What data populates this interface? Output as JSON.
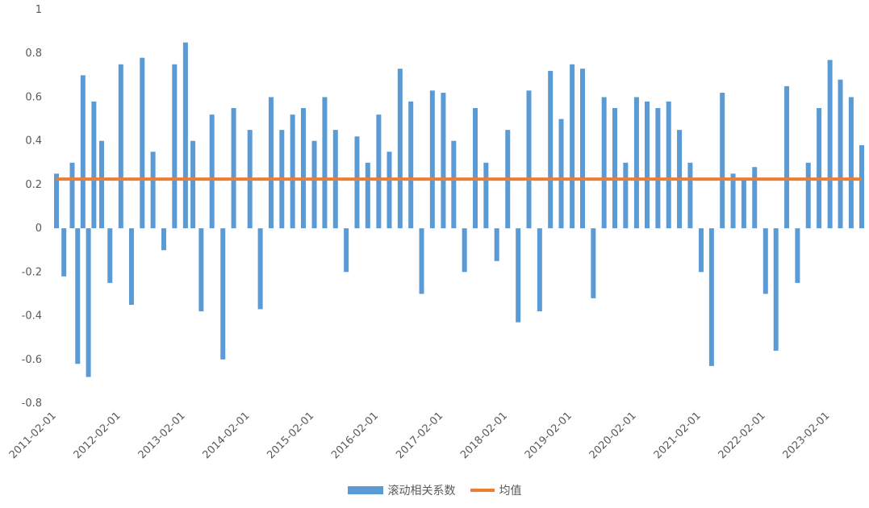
{
  "chart_data": {
    "type": "area",
    "title": "",
    "xlabel": "",
    "ylabel": "",
    "ylim": [
      -0.8,
      1
    ],
    "y_ticks": [
      "1",
      "0.8",
      "0.6",
      "0.4",
      "0.2",
      "0",
      "-0.2",
      "-0.4",
      "-0.6",
      "-0.8"
    ],
    "x_ticks": [
      "2011-02-01",
      "2012-02-01",
      "2013-02-01",
      "2014-02-01",
      "2015-02-01",
      "2016-02-01",
      "2017-02-01",
      "2018-02-01",
      "2019-02-01",
      "2020-02-01",
      "2021-02-01",
      "2022-02-01",
      "2023-02-01"
    ],
    "x_range": [
      "2011-02-01",
      "2023-07-31"
    ],
    "grid": false,
    "legend_position": "bottom",
    "series": [
      {
        "name": "滚动相关系数",
        "kind": "area",
        "color": "#5b9bd5",
        "x": [
          "2011-02-01",
          "2011-03-15",
          "2011-05-01",
          "2011-06-01",
          "2011-07-01",
          "2011-08-01",
          "2011-09-01",
          "2011-10-15",
          "2011-12-01",
          "2012-02-01",
          "2012-04-01",
          "2012-06-01",
          "2012-08-01",
          "2012-10-01",
          "2012-12-01",
          "2013-02-01",
          "2013-03-15",
          "2013-05-01",
          "2013-07-01",
          "2013-09-01",
          "2013-11-01",
          "2014-02-01",
          "2014-04-01",
          "2014-06-01",
          "2014-08-01",
          "2014-10-01",
          "2014-12-01",
          "2015-02-01",
          "2015-04-01",
          "2015-06-01",
          "2015-08-01",
          "2015-10-01",
          "2015-12-01",
          "2016-02-01",
          "2016-04-01",
          "2016-06-01",
          "2016-08-01",
          "2016-10-01",
          "2016-12-01",
          "2017-02-01",
          "2017-04-01",
          "2017-06-01",
          "2017-08-01",
          "2017-10-01",
          "2017-12-01",
          "2018-02-01",
          "2018-04-01",
          "2018-06-01",
          "2018-08-01",
          "2018-10-01",
          "2018-12-01",
          "2019-02-01",
          "2019-04-01",
          "2019-06-01",
          "2019-08-01",
          "2019-10-01",
          "2019-12-01",
          "2020-02-01",
          "2020-04-01",
          "2020-06-01",
          "2020-08-01",
          "2020-10-01",
          "2020-12-01",
          "2021-02-01",
          "2021-04-01",
          "2021-06-01",
          "2021-08-01",
          "2021-10-01",
          "2021-12-01",
          "2022-02-01",
          "2022-04-01",
          "2022-06-01",
          "2022-08-01",
          "2022-10-01",
          "2022-12-01",
          "2023-02-01",
          "2023-04-01",
          "2023-06-01",
          "2023-07-31"
        ],
        "values": [
          0.25,
          -0.22,
          0.3,
          -0.62,
          0.7,
          -0.68,
          0.58,
          0.4,
          -0.25,
          0.75,
          -0.35,
          0.78,
          0.35,
          -0.1,
          0.75,
          0.85,
          0.4,
          -0.38,
          0.52,
          -0.6,
          0.55,
          0.45,
          -0.37,
          0.6,
          0.45,
          0.52,
          0.55,
          0.4,
          0.6,
          0.45,
          -0.2,
          0.42,
          0.3,
          0.52,
          0.35,
          0.73,
          0.58,
          -0.3,
          0.63,
          0.62,
          0.4,
          -0.2,
          0.55,
          0.3,
          -0.15,
          0.45,
          -0.43,
          0.63,
          -0.38,
          0.72,
          0.5,
          0.75,
          0.73,
          -0.32,
          0.6,
          0.55,
          0.3,
          0.6,
          0.58,
          0.55,
          0.58,
          0.45,
          0.3,
          -0.2,
          -0.63,
          0.62,
          0.25,
          0.22,
          0.28,
          -0.3,
          -0.56,
          0.65,
          -0.25,
          0.3,
          0.55,
          0.77,
          0.68,
          0.6,
          0.38
        ]
      },
      {
        "name": "均值",
        "kind": "line",
        "color": "#ed7d31",
        "value": 0.225
      }
    ]
  }
}
